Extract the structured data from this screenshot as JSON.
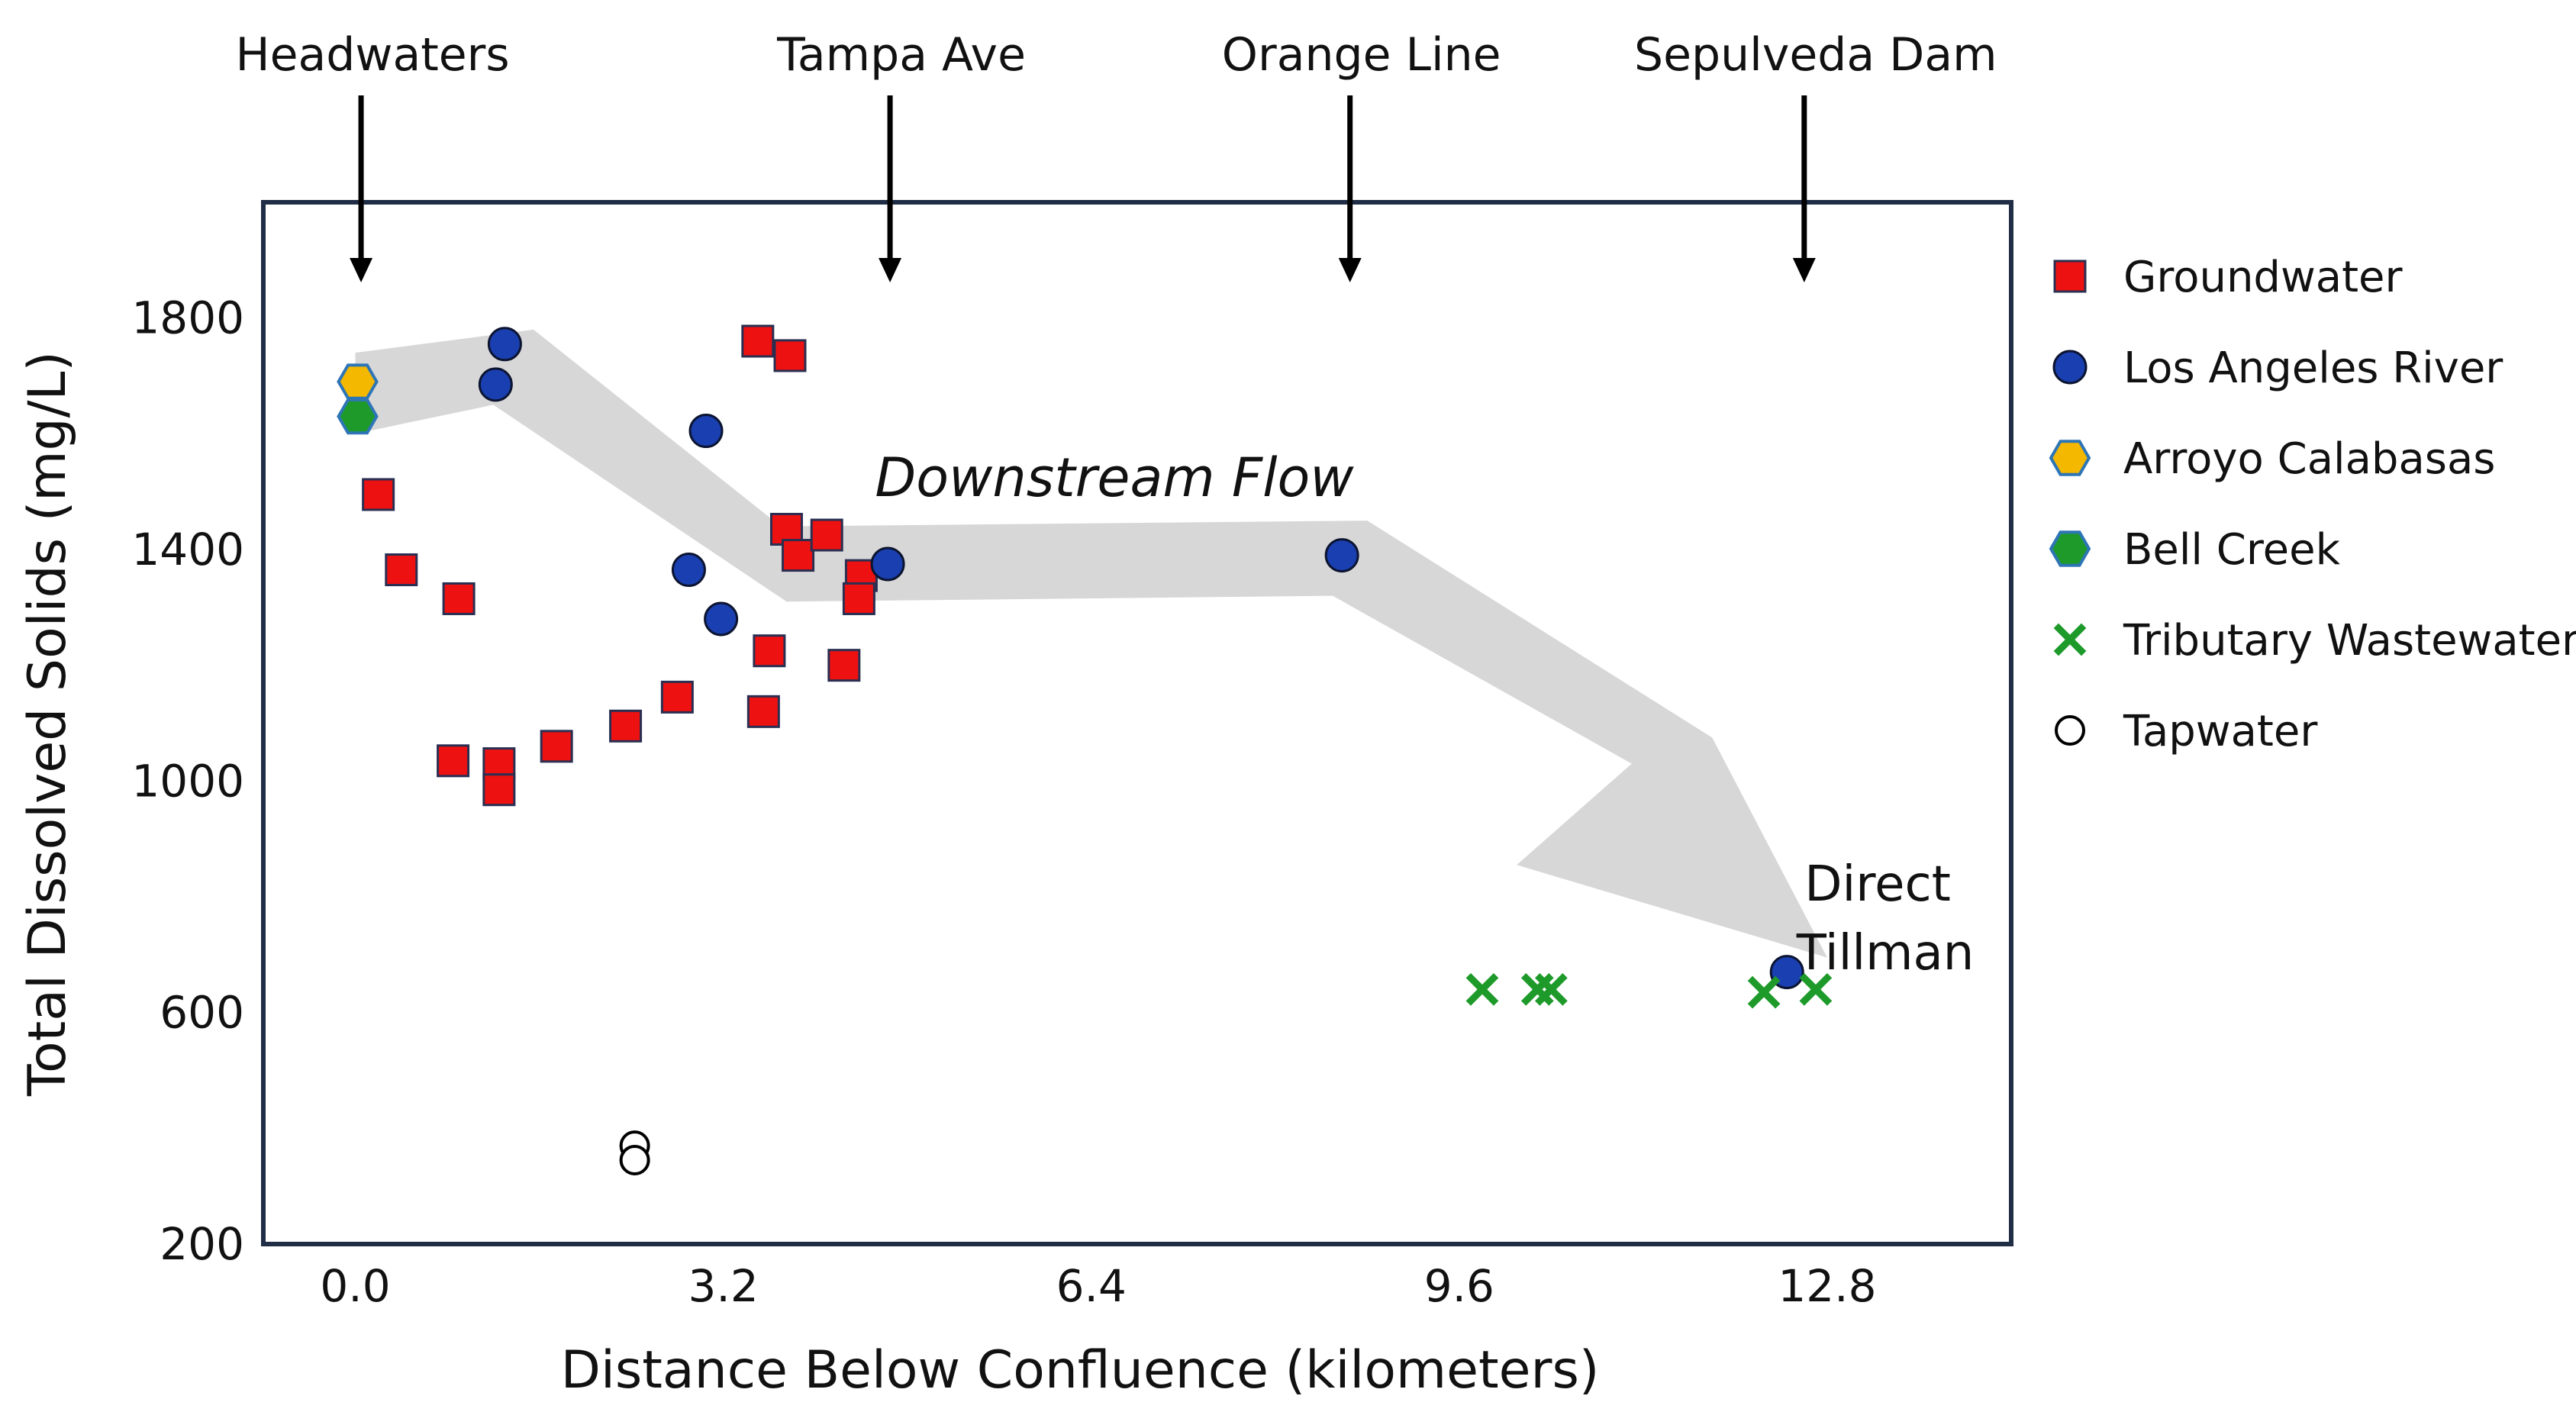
{
  "colors": {
    "frame": "#1f2d45",
    "groundwater": "#ee1111",
    "los_angeles_river": "#1a3fb0",
    "arroyo_calabasas": "#f4b800",
    "bell_creek": "#1e9a2a",
    "hex_stroke": "#2e75b6",
    "tributary_wastewater": "#1e9a2a",
    "flow_band": "#d8d7d7",
    "text": "#111111"
  },
  "chart_data": {
    "type": "scatter",
    "title": "",
    "xlabel": "Distance Below Confluence (kilometers)",
    "ylabel": "Total Dissolved Solids (mg/L)",
    "xlim": [
      -0.8,
      14.4
    ],
    "ylim": [
      200,
      2000
    ],
    "xticks": [
      0.0,
      3.2,
      6.4,
      9.6,
      12.8
    ],
    "xtick_labels": [
      "0.0",
      "3.2",
      "6.4",
      "9.6",
      "12.8"
    ],
    "yticks": [
      200,
      600,
      1000,
      1400,
      1800
    ],
    "ytick_labels": [
      "200",
      "600",
      "1000",
      "1400",
      "1800"
    ],
    "grid": false,
    "legend_position": "right",
    "series": [
      {
        "name": "Groundwater",
        "marker": "square",
        "points": [
          {
            "x": 0.2,
            "y": 1495
          },
          {
            "x": 0.4,
            "y": 1365
          },
          {
            "x": 0.9,
            "y": 1315
          },
          {
            "x": 0.85,
            "y": 1035
          },
          {
            "x": 1.25,
            "y": 1030
          },
          {
            "x": 1.25,
            "y": 985
          },
          {
            "x": 1.75,
            "y": 1060
          },
          {
            "x": 2.35,
            "y": 1095
          },
          {
            "x": 2.8,
            "y": 1145
          },
          {
            "x": 3.5,
            "y": 1760
          },
          {
            "x": 3.78,
            "y": 1735
          },
          {
            "x": 3.6,
            "y": 1225
          },
          {
            "x": 3.55,
            "y": 1120
          },
          {
            "x": 3.75,
            "y": 1435
          },
          {
            "x": 3.85,
            "y": 1390
          },
          {
            "x": 4.1,
            "y": 1425
          },
          {
            "x": 4.25,
            "y": 1200
          },
          {
            "x": 4.4,
            "y": 1355
          },
          {
            "x": 4.38,
            "y": 1315
          }
        ]
      },
      {
        "name": "Los Angeles River",
        "marker": "circle",
        "points": [
          {
            "x": 1.3,
            "y": 1755
          },
          {
            "x": 1.22,
            "y": 1685
          },
          {
            "x": 3.05,
            "y": 1605
          },
          {
            "x": 2.9,
            "y": 1365
          },
          {
            "x": 3.18,
            "y": 1280
          },
          {
            "x": 4.63,
            "y": 1375
          },
          {
            "x": 8.58,
            "y": 1390
          },
          {
            "x": 12.45,
            "y": 670
          }
        ]
      },
      {
        "name": "Arroyo Calabasas",
        "marker": "hexagon",
        "points": [
          {
            "x": 0.02,
            "y": 1690
          }
        ]
      },
      {
        "name": "Bell Creek",
        "marker": "hexagon",
        "points": [
          {
            "x": 0.02,
            "y": 1630
          }
        ]
      },
      {
        "name": "Tributary Wastewater",
        "marker": "x",
        "points": [
          {
            "x": 9.8,
            "y": 640
          },
          {
            "x": 10.28,
            "y": 640
          },
          {
            "x": 10.4,
            "y": 640
          },
          {
            "x": 12.25,
            "y": 635
          },
          {
            "x": 12.7,
            "y": 640
          }
        ]
      },
      {
        "name": "Tapwater",
        "marker": "open-circle",
        "points": [
          {
            "x": 2.43,
            "y": 370
          },
          {
            "x": 2.43,
            "y": 345
          }
        ]
      }
    ],
    "location_markers": [
      {
        "label": "Headwaters",
        "x": 0.05
      },
      {
        "label": "Tampa Ave",
        "x": 4.65
      },
      {
        "label": "Orange Line",
        "x": 8.65
      },
      {
        "label": "Sepulveda Dam",
        "x": 12.6
      }
    ],
    "annotations": {
      "flow_label": "Downstream Flow",
      "tillman_line1": "Direct",
      "tillman_line2": "Tillman"
    },
    "flow_band": [
      {
        "x": 0.0,
        "y": 1740
      },
      {
        "x": 1.55,
        "y": 1780
      },
      {
        "x": 3.7,
        "y": 1440
      },
      {
        "x": 8.8,
        "y": 1450
      },
      {
        "x": 11.8,
        "y": 1075
      },
      {
        "x": 12.8,
        "y": 695
      },
      {
        "x": 10.1,
        "y": 855
      },
      {
        "x": 11.1,
        "y": 1030
      },
      {
        "x": 8.5,
        "y": 1320
      },
      {
        "x": 3.75,
        "y": 1310
      },
      {
        "x": 1.2,
        "y": 1650
      },
      {
        "x": 0.0,
        "y": 1600
      }
    ]
  }
}
